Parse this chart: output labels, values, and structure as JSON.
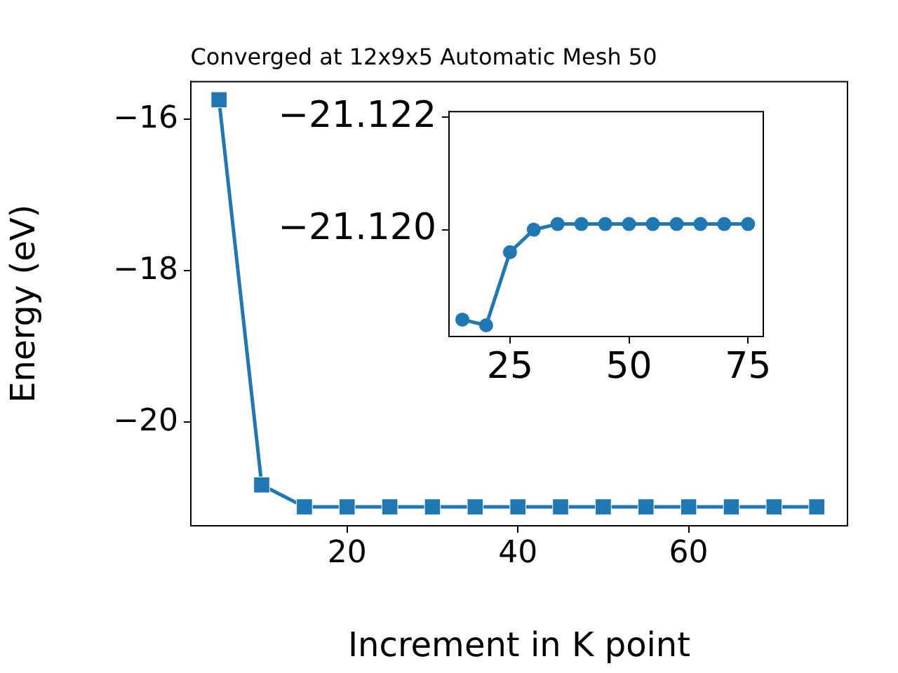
{
  "chart_data": [
    {
      "type": "line",
      "title": "Converged at 12x9x5 Automatic Mesh 50",
      "xlabel": "Increment in K point",
      "ylabel": "Energy (eV)",
      "x": [
        5,
        10,
        15,
        20,
        25,
        30,
        35,
        40,
        45,
        50,
        55,
        60,
        65,
        70,
        75
      ],
      "series": [
        {
          "color": "#1f77b4",
          "values": [
            -15.74,
            -20.83,
            -21.12,
            -21.12,
            -21.12,
            -21.12,
            -21.12,
            -21.12,
            -21.12,
            -21.12,
            -21.12,
            -21.12,
            -21.12,
            -21.12,
            -21.12
          ]
        }
      ],
      "xlim": [
        1.7,
        78.6
      ],
      "xticks": [
        20,
        40,
        60
      ],
      "ylim": [
        -21.37,
        -15.5
      ],
      "yticks": [
        {
          "value": -16,
          "label": "−16"
        },
        {
          "value": -18,
          "label": "−18"
        },
        {
          "value": -20,
          "label": "−20"
        }
      ],
      "grid": false,
      "legend": false,
      "marker": "square",
      "line_style": "solid"
    },
    {
      "type": "line",
      "x": [
        15,
        20,
        25,
        30,
        35,
        40,
        45,
        50,
        55,
        60,
        65,
        70,
        75
      ],
      "series": [
        {
          "color": "#1f77b4",
          "values": [
            -21.1184,
            -21.1183,
            -21.1196,
            -21.12,
            -21.1201,
            -21.1201,
            -21.1201,
            -21.1201,
            -21.1201,
            -21.1201,
            -21.1201,
            -21.1201,
            -21.1201
          ]
        }
      ],
      "xlim": [
        12.2,
        78.2
      ],
      "xticks": [
        25,
        50,
        75
      ],
      "ylim": [
        -21.1181,
        -21.1221
      ],
      "yticks": [
        {
          "value": -21.122,
          "label": "−21.122"
        },
        {
          "value": -21.12,
          "label": "−21.120"
        }
      ],
      "grid": false,
      "legend": false,
      "marker": "circle",
      "line_style": "solid"
    }
  ]
}
